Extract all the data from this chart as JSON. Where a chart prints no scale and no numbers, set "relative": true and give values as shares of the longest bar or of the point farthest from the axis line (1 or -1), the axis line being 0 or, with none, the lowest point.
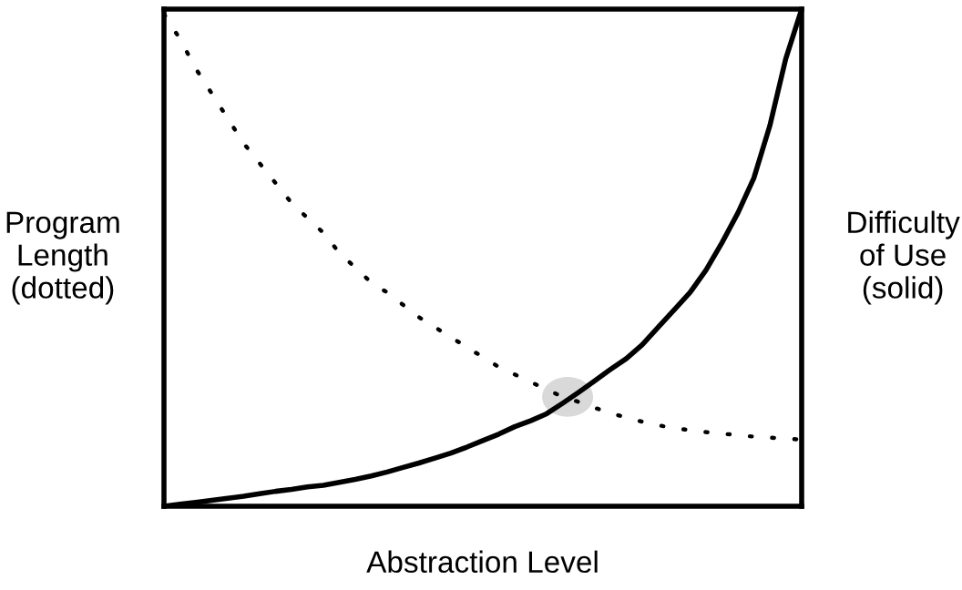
{
  "chart_data": {
    "type": "line",
    "relative": true,
    "xlabel": "Abstraction Level",
    "ylabel": "Program\nLength\n(dotted)",
    "y2label": "Difficulty\nof Use\n(solid)",
    "categories": [
      null,
      null,
      null,
      null,
      null,
      null,
      null,
      null,
      null,
      null,
      null,
      null,
      null,
      null,
      null,
      null,
      null,
      null,
      null,
      null,
      null,
      null,
      null,
      null,
      null,
      null,
      null,
      null,
      null,
      null,
      null,
      null,
      null,
      null,
      null,
      null,
      null,
      null,
      null,
      null,
      null
    ],
    "series": [
      {
        "line_style": "dotted",
        "color": "#000000",
        "values": [
          0.99,
          0.94,
          0.88,
          0.83,
          0.78,
          0.73,
          0.69,
          0.65,
          0.61,
          0.58,
          0.55,
          0.51,
          0.48,
          0.45,
          0.43,
          0.405,
          0.38,
          0.36,
          0.34,
          0.32,
          0.3,
          0.28,
          0.265,
          0.25,
          0.235,
          0.22,
          0.21,
          0.198,
          0.188,
          0.178,
          0.17,
          0.163,
          0.157,
          0.153,
          0.149,
          0.146,
          0.143,
          0.14,
          0.138,
          0.136,
          0.134
        ]
      },
      {
        "line_style": "solid",
        "color": "#000000",
        "values": [
          0,
          0.004,
          0.008,
          0.012,
          0.016,
          0.02,
          0.025,
          0.03,
          0.034,
          0.039,
          0.042,
          0.048,
          0.054,
          0.061,
          0.069,
          0.078,
          0.087,
          0.097,
          0.107,
          0.119,
          0.132,
          0.145,
          0.16,
          0.172,
          0.186,
          0.207,
          0.229,
          0.252,
          0.275,
          0.297,
          0.325,
          0.36,
          0.395,
          0.43,
          0.475,
          0.53,
          0.59,
          0.66,
          0.765,
          0.9,
          1
        ]
      }
    ]
  }
}
